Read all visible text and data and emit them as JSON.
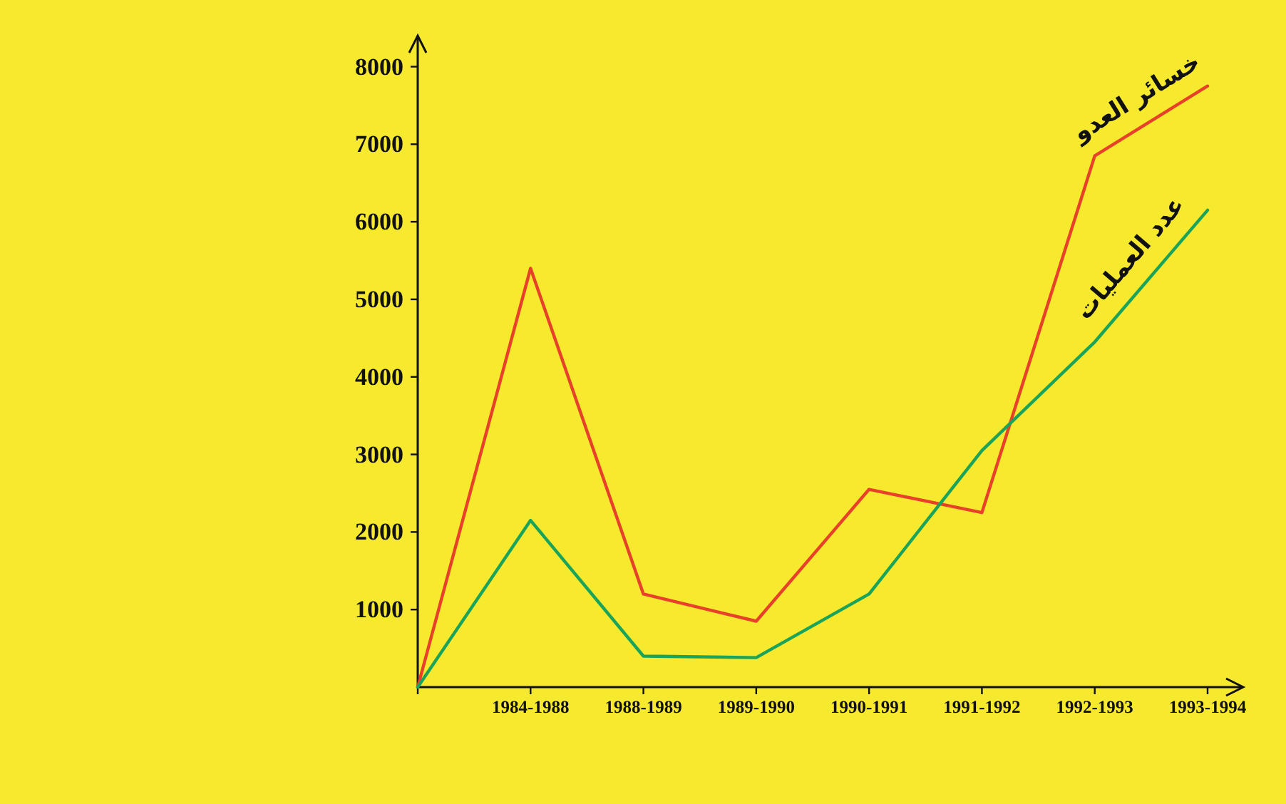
{
  "chart_data": {
    "type": "line",
    "categories": [
      null,
      "1984-1988",
      "1988-1989",
      "1989-1990",
      "1990-1991",
      "1991-1992",
      "1992-1993",
      "1993-1994"
    ],
    "series": [
      {
        "name": "خسائر العدو",
        "color": "#e8412a",
        "values": [
          0,
          5400,
          1200,
          850,
          2550,
          2250,
          6850,
          7750
        ]
      },
      {
        "name": "عدد العمليات",
        "color": "#1ba35a",
        "values": [
          0,
          2150,
          400,
          380,
          1200,
          3050,
          4450,
          6150
        ]
      }
    ],
    "ylim": [
      0,
      8400
    ],
    "yticks": [
      1000,
      2000,
      3000,
      4000,
      5000,
      6000,
      7000,
      8000
    ]
  }
}
